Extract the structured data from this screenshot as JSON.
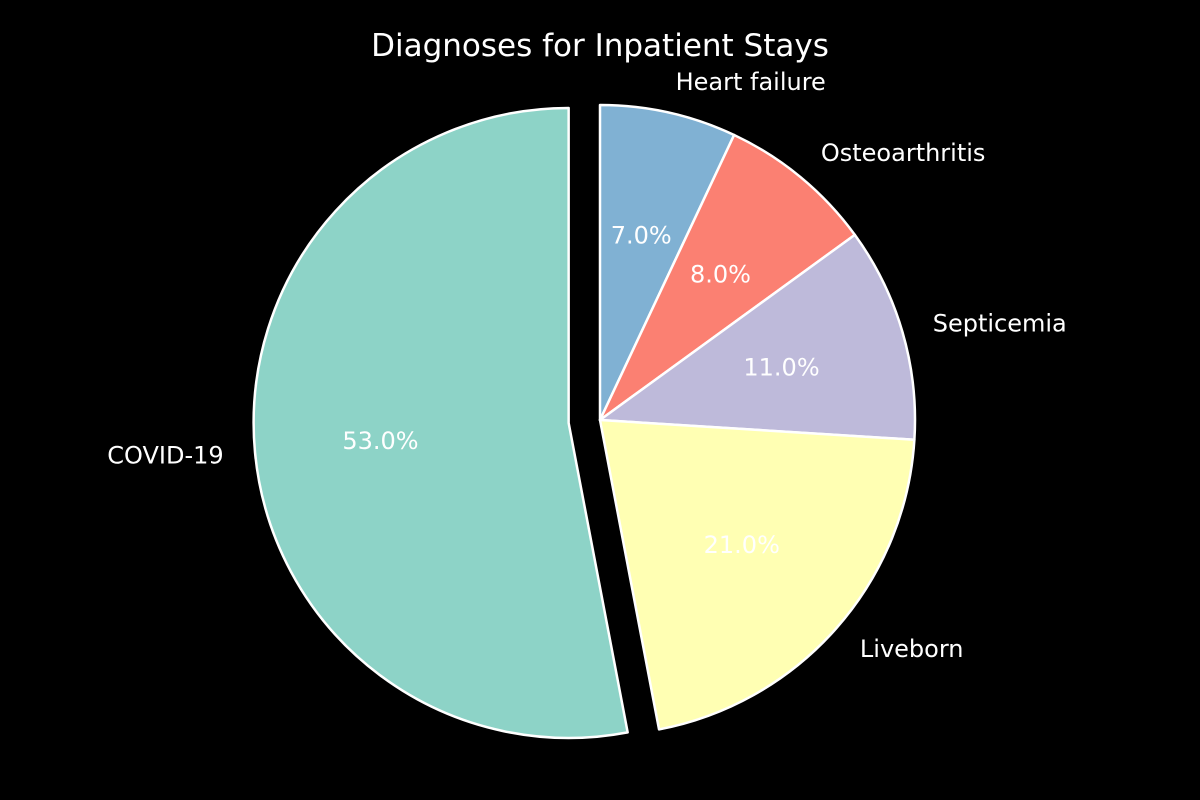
{
  "chart_data": {
    "type": "pie",
    "title": "Diagnoses for Inpatient Stays",
    "slices": [
      {
        "label": "Heart failure",
        "value": 7.0,
        "pct_label": "7.0%",
        "color": "#80b1d3",
        "explode": 0
      },
      {
        "label": "Osteoarthritis",
        "value": 8.0,
        "pct_label": "8.0%",
        "color": "#fb8072",
        "explode": 0
      },
      {
        "label": "Septicemia",
        "value": 11.0,
        "pct_label": "11.0%",
        "color": "#bebada",
        "explode": 0
      },
      {
        "label": "Liveborn",
        "value": 21.0,
        "pct_label": "21.0%",
        "color": "#ffffb3",
        "explode": 0
      },
      {
        "label": "COVID-19",
        "value": 53.0,
        "pct_label": "53.0%",
        "color": "#8dd3c7",
        "explode": 0.1
      }
    ],
    "start_angle": 90,
    "direction": "clockwise",
    "background": "#000000",
    "edge_color": "#ffffff",
    "text_color": "#ffffff"
  }
}
